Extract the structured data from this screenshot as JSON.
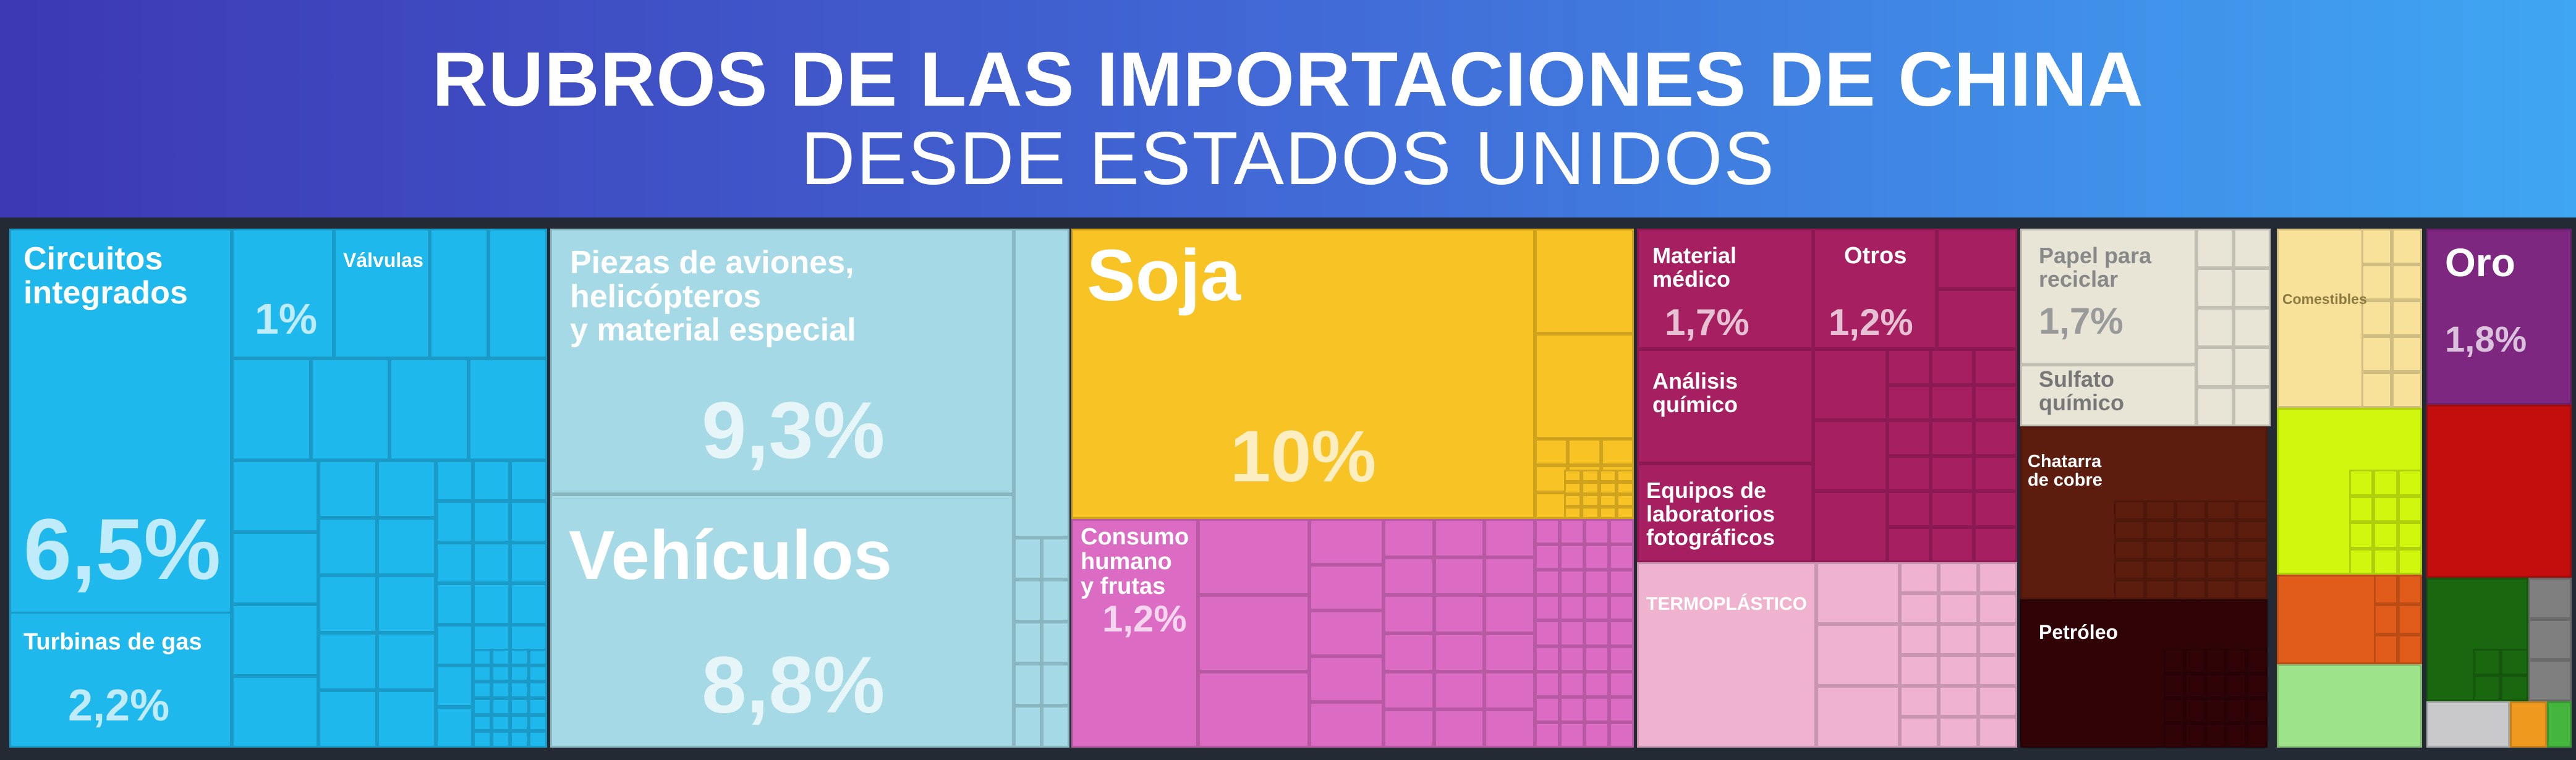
{
  "header": {
    "title_line1": "RUBROS DE LAS IMPORTACIONES DE CHINA",
    "title_line2": "DESDE ESTADOS UNIDOS"
  },
  "colors": {
    "header_start": "#3d38b4",
    "header_end": "#3fa6f3",
    "background": "#232a33",
    "electronics": "#1fb8ec",
    "transport": "#a5d9e6",
    "agriculture": "#f8c325",
    "food": "#dc6cc3",
    "chemicals": "#a51f61",
    "plastics": "#efb3d0",
    "paper": "#e8e4d6",
    "metals": "#5c1d0e",
    "mineral": "#300406",
    "gold": "#7d2781"
  },
  "chart_data": {
    "type": "treemap",
    "title": "RUBROS DE LAS IMPORTACIONES DE CHINA DESDE ESTADOS UNIDOS",
    "items": [
      {
        "label": "Circuitos integrados",
        "value_label": "6,5%",
        "value": 6.5,
        "category": "electronics"
      },
      {
        "label": "Válvulas",
        "value_label": "1%",
        "value": 1.0,
        "category": "electronics"
      },
      {
        "label": "Turbinas de gas",
        "value_label": "2,2%",
        "value": 2.2,
        "category": "electronics"
      },
      {
        "label": "Piezas de aviones, helicópteros y material especial",
        "value_label": "9,3%",
        "value": 9.3,
        "category": "transport"
      },
      {
        "label": "Vehículos",
        "value_label": "8,8%",
        "value": 8.8,
        "category": "transport"
      },
      {
        "label": "Soja",
        "value_label": "10%",
        "value": 10.0,
        "category": "agriculture"
      },
      {
        "label": "Consumo humano y frutas",
        "value_label": "1,2%",
        "value": 1.2,
        "category": "food"
      },
      {
        "label": "Material médico",
        "value_label": "1,7%",
        "value": 1.7,
        "category": "chemicals"
      },
      {
        "label": "Otros",
        "value_label": "1,2%",
        "value": 1.2,
        "category": "chemicals"
      },
      {
        "label": "Análisis químico",
        "value_label": "",
        "value": null,
        "category": "chemicals"
      },
      {
        "label": "Equipos de laboratorios fotográficos",
        "value_label": "",
        "value": null,
        "category": "chemicals"
      },
      {
        "label": "Termoplástico",
        "value_label": "",
        "value": null,
        "category": "plastics"
      },
      {
        "label": "Papel para reciclar",
        "value_label": "1,7%",
        "value": 1.7,
        "category": "paper"
      },
      {
        "label": "Sulfato químico",
        "value_label": "",
        "value": null,
        "category": "paper"
      },
      {
        "label": "Chatarra de cobre",
        "value_label": "",
        "value": null,
        "category": "metals"
      },
      {
        "label": "Petróleo",
        "value_label": "",
        "value": null,
        "category": "mineral"
      },
      {
        "label": "Comestibles",
        "value_label": "",
        "value": null,
        "category": "food"
      },
      {
        "label": "Oro",
        "value_label": "1,8%",
        "value": 1.8,
        "category": "gold"
      }
    ]
  },
  "labels": {
    "circuitos": "Circuitos\nintegrados",
    "circuitos_pct": "6,5%",
    "valvulas": "Válvulas",
    "valvulas_pct": "1%",
    "turbinas": "Turbinas de gas",
    "turbinas_pct": "2,2%",
    "piezas": "Piezas de aviones,\nhelicópteros\ny material especial",
    "piezas_pct": "9,3%",
    "vehiculos": "Vehículos",
    "vehiculos_pct": "8,8%",
    "soja": "Soja",
    "soja_pct": "10%",
    "consumo": "Consumo\nhumano\ny frutas",
    "consumo_pct": "1,2%",
    "medico": "Material\nmédico",
    "medico_pct": "1,7%",
    "otros": "Otros",
    "otros_pct": "1,2%",
    "analisis": "Análisis\nquímico",
    "equipos": "Equipos de\nlaboratorios\nfotográficos",
    "termo": "TERMOPLÁSTICO",
    "papel": "Papel para\nreciclar",
    "papel_pct": "1,7%",
    "sulfato": "Sulfato\nquímico",
    "chatarra": "Chatarra\nde cobre",
    "petroleo": "Petróleo",
    "comestibles": "Comestibles",
    "oro": "Oro",
    "oro_pct": "1,8%"
  }
}
